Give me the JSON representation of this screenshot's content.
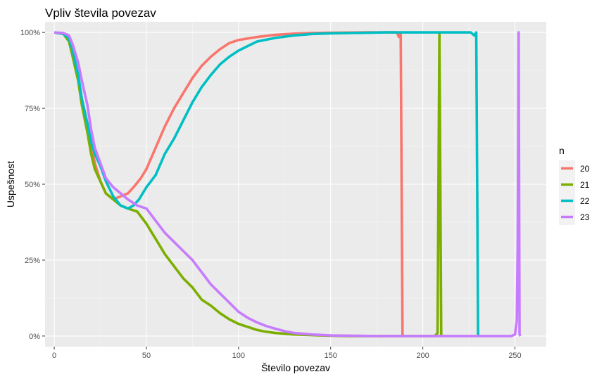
{
  "chart_data": {
    "type": "line",
    "title": "Vpliv števila povezav",
    "xlabel": "Število povezav",
    "ylabel": "Uspešnost",
    "xlim": [
      -5,
      267
    ],
    "ylim": [
      -0.035,
      1.035
    ],
    "x_ticks": [
      0,
      50,
      100,
      150,
      200,
      250
    ],
    "y_ticks": [
      0,
      0.25,
      0.5,
      0.75,
      1.0
    ],
    "y_tick_labels": [
      "0%",
      "25%",
      "50%",
      "75%",
      "100%"
    ],
    "grid": true,
    "legend": {
      "title": "n",
      "placement": "right"
    },
    "series": [
      {
        "name": "20",
        "color": "#F8766D",
        "points": [
          [
            0,
            1.0
          ],
          [
            5,
            0.995
          ],
          [
            8,
            0.98
          ],
          [
            10,
            0.93
          ],
          [
            13,
            0.85
          ],
          [
            15,
            0.78
          ],
          [
            18,
            0.7
          ],
          [
            20,
            0.63
          ],
          [
            22,
            0.57
          ],
          [
            25,
            0.51
          ],
          [
            28,
            0.47
          ],
          [
            32,
            0.45
          ],
          [
            36,
            0.46
          ],
          [
            40,
            0.47
          ],
          [
            43,
            0.49
          ],
          [
            47,
            0.52
          ],
          [
            50,
            0.55
          ],
          [
            55,
            0.62
          ],
          [
            60,
            0.69
          ],
          [
            65,
            0.75
          ],
          [
            70,
            0.8
          ],
          [
            75,
            0.85
          ],
          [
            80,
            0.89
          ],
          [
            85,
            0.92
          ],
          [
            90,
            0.945
          ],
          [
            95,
            0.965
          ],
          [
            100,
            0.975
          ],
          [
            110,
            0.985
          ],
          [
            120,
            0.992
          ],
          [
            130,
            0.996
          ],
          [
            140,
            0.998
          ],
          [
            150,
            0.999
          ],
          [
            170,
            1.0
          ],
          [
            186,
            1.0
          ],
          [
            187,
            0.985
          ],
          [
            188,
            1.0
          ],
          [
            189,
            0.0
          ]
        ]
      },
      {
        "name": "21",
        "color": "#7CAE00",
        "points": [
          [
            0,
            1.0
          ],
          [
            5,
            0.995
          ],
          [
            8,
            0.97
          ],
          [
            10,
            0.92
          ],
          [
            13,
            0.84
          ],
          [
            15,
            0.76
          ],
          [
            18,
            0.67
          ],
          [
            20,
            0.6
          ],
          [
            22,
            0.55
          ],
          [
            25,
            0.51
          ],
          [
            28,
            0.47
          ],
          [
            32,
            0.45
          ],
          [
            36,
            0.43
          ],
          [
            40,
            0.42
          ],
          [
            45,
            0.41
          ],
          [
            50,
            0.37
          ],
          [
            55,
            0.32
          ],
          [
            60,
            0.27
          ],
          [
            65,
            0.23
          ],
          [
            70,
            0.19
          ],
          [
            75,
            0.16
          ],
          [
            80,
            0.12
          ],
          [
            85,
            0.1
          ],
          [
            90,
            0.075
          ],
          [
            95,
            0.055
          ],
          [
            100,
            0.04
          ],
          [
            105,
            0.03
          ],
          [
            110,
            0.02
          ],
          [
            115,
            0.014
          ],
          [
            120,
            0.01
          ],
          [
            130,
            0.005
          ],
          [
            140,
            0.003
          ],
          [
            150,
            0.001
          ],
          [
            160,
            0.0
          ],
          [
            206,
            0.0
          ],
          [
            207,
            0.003
          ],
          [
            208,
            0.01
          ],
          [
            208.5,
            0.5
          ],
          [
            209,
            1.0
          ],
          [
            210,
            0.0
          ]
        ]
      },
      {
        "name": "22",
        "color": "#00BFC4",
        "points": [
          [
            0,
            1.0
          ],
          [
            5,
            0.995
          ],
          [
            8,
            0.98
          ],
          [
            10,
            0.94
          ],
          [
            13,
            0.86
          ],
          [
            15,
            0.78
          ],
          [
            18,
            0.7
          ],
          [
            20,
            0.64
          ],
          [
            22,
            0.6
          ],
          [
            25,
            0.56
          ],
          [
            28,
            0.51
          ],
          [
            32,
            0.46
          ],
          [
            36,
            0.43
          ],
          [
            40,
            0.42
          ],
          [
            43,
            0.43
          ],
          [
            46,
            0.45
          ],
          [
            50,
            0.49
          ],
          [
            55,
            0.53
          ],
          [
            60,
            0.6
          ],
          [
            65,
            0.65
          ],
          [
            70,
            0.71
          ],
          [
            75,
            0.77
          ],
          [
            80,
            0.82
          ],
          [
            85,
            0.86
          ],
          [
            90,
            0.895
          ],
          [
            95,
            0.92
          ],
          [
            100,
            0.94
          ],
          [
            105,
            0.955
          ],
          [
            110,
            0.97
          ],
          [
            120,
            0.982
          ],
          [
            130,
            0.99
          ],
          [
            140,
            0.995
          ],
          [
            150,
            0.997
          ],
          [
            170,
            0.999
          ],
          [
            180,
            1.0
          ],
          [
            226,
            1.0
          ],
          [
            228,
            0.99
          ],
          [
            229,
            1.0
          ],
          [
            230,
            0.0
          ]
        ]
      },
      {
        "name": "23",
        "color": "#C77CFF",
        "points": [
          [
            0,
            1.0
          ],
          [
            5,
            0.998
          ],
          [
            8,
            0.99
          ],
          [
            10,
            0.96
          ],
          [
            13,
            0.9
          ],
          [
            15,
            0.84
          ],
          [
            18,
            0.76
          ],
          [
            20,
            0.68
          ],
          [
            22,
            0.62
          ],
          [
            25,
            0.57
          ],
          [
            28,
            0.52
          ],
          [
            32,
            0.49
          ],
          [
            36,
            0.47
          ],
          [
            40,
            0.45
          ],
          [
            45,
            0.43
          ],
          [
            50,
            0.42
          ],
          [
            55,
            0.38
          ],
          [
            60,
            0.34
          ],
          [
            65,
            0.31
          ],
          [
            70,
            0.28
          ],
          [
            75,
            0.25
          ],
          [
            80,
            0.21
          ],
          [
            85,
            0.17
          ],
          [
            90,
            0.14
          ],
          [
            95,
            0.11
          ],
          [
            100,
            0.08
          ],
          [
            105,
            0.06
          ],
          [
            110,
            0.045
          ],
          [
            115,
            0.033
          ],
          [
            120,
            0.024
          ],
          [
            125,
            0.016
          ],
          [
            130,
            0.01
          ],
          [
            140,
            0.005
          ],
          [
            150,
            0.002
          ],
          [
            160,
            0.001
          ],
          [
            175,
            0.0
          ],
          [
            248,
            0.0
          ],
          [
            250,
            0.005
          ],
          [
            251,
            0.05
          ],
          [
            251.5,
            0.3
          ],
          [
            252,
            1.0
          ],
          [
            252.5,
            0.005
          ],
          [
            253,
            0.0
          ]
        ]
      }
    ]
  }
}
